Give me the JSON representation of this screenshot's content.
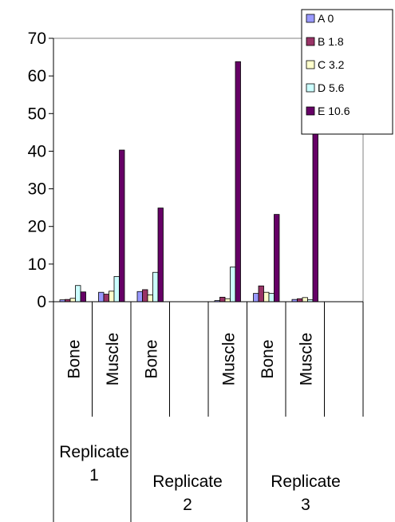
{
  "chart_data": {
    "type": "bar",
    "ylim": [
      0,
      70
    ],
    "yticks": [
      0,
      10,
      20,
      30,
      40,
      50,
      60,
      70
    ],
    "grid": false,
    "legend_position": "top-right",
    "categories": [
      "Bone",
      "Muscle",
      "Bone",
      "",
      "Muscle",
      "Bone",
      "Muscle",
      ""
    ],
    "groups": [
      {
        "label_line1": "Replicate",
        "label_line2": "1"
      },
      {
        "label_line1": "Replicate",
        "label_line2": "2"
      },
      {
        "label_line1": "Replicate",
        "label_line2": "3"
      }
    ],
    "series": [
      {
        "name": "A 0",
        "color": "#9999ff",
        "values": [
          0.5,
          2.5,
          2.7,
          null,
          0.3,
          2.2,
          0.6,
          null
        ]
      },
      {
        "name": "B 1.8",
        "color": "#993366",
        "values": [
          0.6,
          2.0,
          3.2,
          null,
          1.2,
          4.2,
          0.8,
          null
        ]
      },
      {
        "name": "C 3.2",
        "color": "#ffffcc",
        "values": [
          0.9,
          2.8,
          1.8,
          null,
          0.8,
          2.5,
          1.1,
          null
        ]
      },
      {
        "name": "D 5.6",
        "color": "#ccffff",
        "values": [
          4.3,
          6.7,
          7.8,
          null,
          9.2,
          2.2,
          0.5,
          null
        ]
      },
      {
        "name": "E 10.6",
        "color": "#660066",
        "values": [
          2.6,
          40.3,
          24.9,
          null,
          63.8,
          23.2,
          61.8,
          null
        ]
      }
    ]
  }
}
